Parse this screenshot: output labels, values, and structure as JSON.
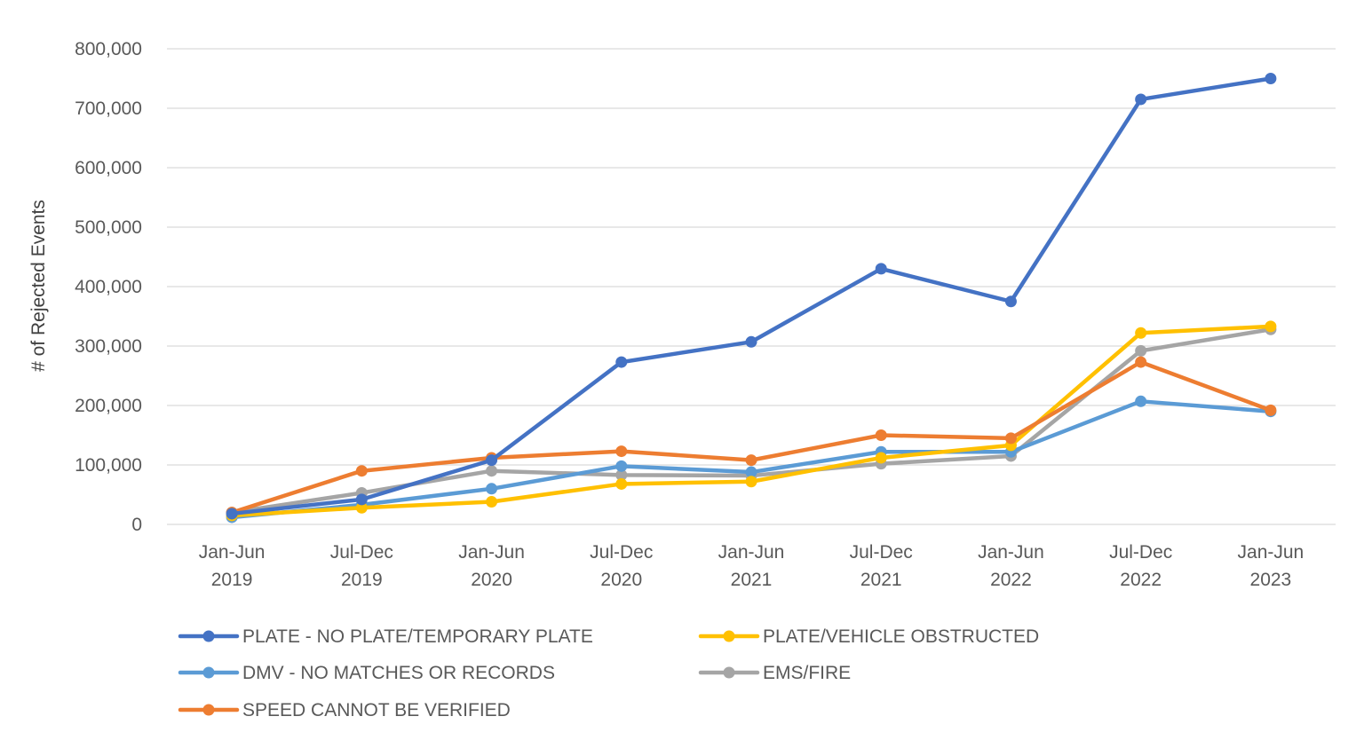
{
  "chart_data": {
    "type": "line",
    "title": "",
    "xlabel": "",
    "ylabel": "# of Rejected Events",
    "ylim": [
      0,
      800000
    ],
    "yticks": [
      0,
      100000,
      200000,
      300000,
      400000,
      500000,
      600000,
      700000,
      800000
    ],
    "ytick_labels": [
      "0",
      "100,000",
      "200,000",
      "300,000",
      "400,000",
      "500,000",
      "600,000",
      "700,000",
      "800,000"
    ],
    "grid": "horizontal",
    "legend_position": "bottom",
    "categories": [
      [
        "Jan-Jun",
        "2019"
      ],
      [
        "Jul-Dec",
        "2019"
      ],
      [
        "Jan-Jun",
        "2020"
      ],
      [
        "Jul-Dec",
        "2020"
      ],
      [
        "Jan-Jun",
        "2021"
      ],
      [
        "Jul-Dec",
        "2021"
      ],
      [
        "Jan-Jun",
        "2022"
      ],
      [
        "Jul-Dec",
        "2022"
      ],
      [
        "Jan-Jun",
        "2023"
      ]
    ],
    "series": [
      {
        "name": "PLATE - NO PLATE/TEMPORARY PLATE",
        "color": "#4472C4",
        "values": [
          18000,
          42000,
          108000,
          273000,
          307000,
          430000,
          375000,
          715000,
          750000
        ]
      },
      {
        "name": "PLATE/VEHICLE OBSTRUCTED",
        "color": "#FFC000",
        "values": [
          15000,
          28000,
          38000,
          68000,
          72000,
          112000,
          133000,
          322000,
          333000
        ]
      },
      {
        "name": "DMV - NO MATCHES OR RECORDS",
        "color": "#5B9BD5",
        "values": [
          12000,
          33000,
          60000,
          98000,
          88000,
          122000,
          122000,
          207000,
          190000
        ]
      },
      {
        "name": "EMS/FIRE",
        "color": "#A5A5A5",
        "values": [
          20000,
          53000,
          90000,
          83000,
          82000,
          102000,
          115000,
          292000,
          328000
        ]
      },
      {
        "name": "SPEED CANNOT BE VERIFIED",
        "color": "#ED7D31",
        "values": [
          20000,
          90000,
          112000,
          123000,
          108000,
          150000,
          145000,
          273000,
          192000
        ]
      }
    ],
    "legend_order": [
      0,
      1,
      2,
      3,
      4
    ]
  }
}
